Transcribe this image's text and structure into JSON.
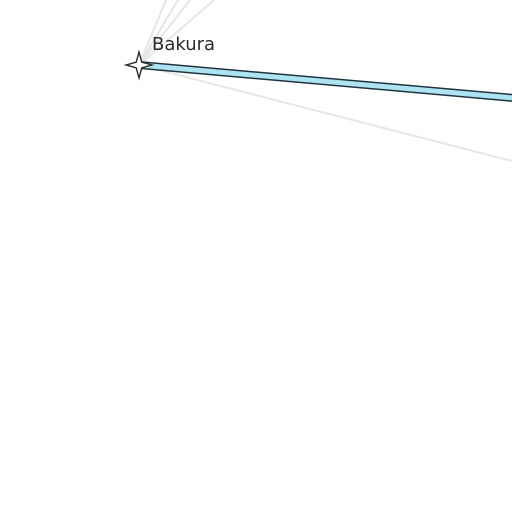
{
  "map": {
    "node": {
      "label": "Bakura",
      "icon": "four-point-star-icon"
    },
    "route": {
      "fill_color": "#aee3f2",
      "outline_color": "#1f3540"
    },
    "background_route_color": "#e6e6e6",
    "background_color": "#ffffff"
  }
}
